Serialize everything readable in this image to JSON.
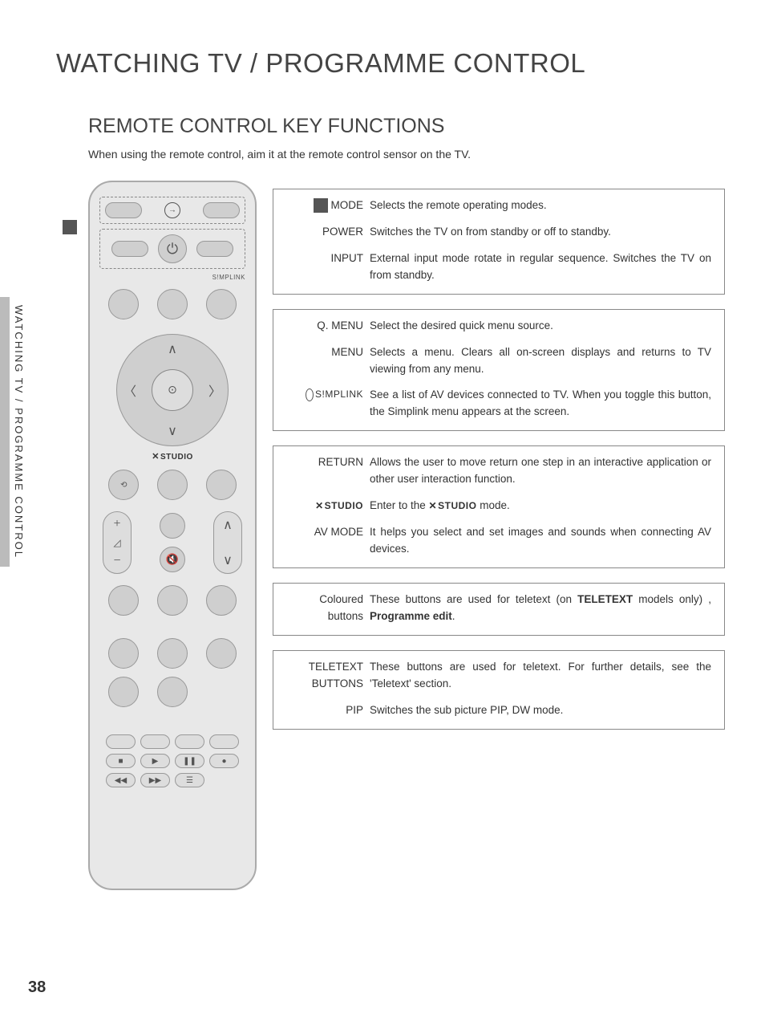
{
  "page_number": "38",
  "side_tab": "WATCHING TV / PROGRAMME CONTROL",
  "main_title": "WATCHING TV / PROGRAMME CONTROL",
  "sub_title": "REMOTE CONTROL KEY FUNCTIONS",
  "intro": "When using the remote control, aim it at the remote control sensor on the TV.",
  "remote": {
    "simplink_label": "S!MPLINK",
    "xstudio_label": "STUDIO"
  },
  "groups": [
    {
      "items": [
        {
          "label": "MODE",
          "text": "Selects the remote operating modes.",
          "marker": true
        },
        {
          "label": "POWER",
          "text": "Switches the TV on from standby or off to standby."
        },
        {
          "label": "INPUT",
          "text": "External input mode rotate in regular sequence. Switches the TV on from standby."
        }
      ]
    },
    {
      "items": [
        {
          "label": "Q. MENU",
          "text": "Select the desired quick menu source."
        },
        {
          "label": "MENU",
          "text": "Selects a menu. Clears all on-screen displays and returns to TV viewing from any menu."
        },
        {
          "label_type": "simplink",
          "text": "See a list of AV devices connected to TV. When you toggle this button, the Simplink menu appears at the screen."
        }
      ]
    },
    {
      "items": [
        {
          "label": "RETURN",
          "text": "Allows the user to move return one step in an interactive application or other user interaction function."
        },
        {
          "label_type": "xstudio",
          "text_parts": [
            "Enter to the ",
            " mode."
          ]
        },
        {
          "label": "AV MODE",
          "text": "It helps you select and set images and sounds when connecting AV devices."
        }
      ]
    },
    {
      "items": [
        {
          "label": "Coloured buttons",
          "text_parts_bold": [
            "These buttons are used for teletext (on ",
            "TELETEXT",
            " models only) , ",
            "Programme edit",
            "."
          ]
        }
      ]
    },
    {
      "items": [
        {
          "label": "TELETEXT BUTTONS",
          "text": "These buttons are used for teletext. For further details, see the 'Teletext' section."
        },
        {
          "label": "PIP",
          "text": "Switches the sub picture PIP, DW mode."
        }
      ]
    }
  ]
}
